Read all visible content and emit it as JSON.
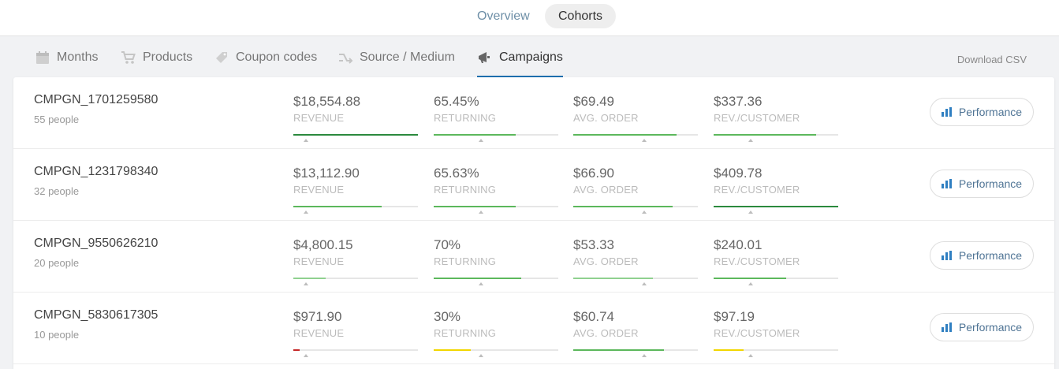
{
  "top_tabs": {
    "overview": "Overview",
    "cohorts": "Cohorts"
  },
  "subnav": {
    "tabs": [
      {
        "label": "Months",
        "icon": "calendar-icon"
      },
      {
        "label": "Products",
        "icon": "cart-icon"
      },
      {
        "label": "Coupon codes",
        "icon": "tag-icon"
      },
      {
        "label": "Source / Medium",
        "icon": "shuffle-icon"
      },
      {
        "label": "Campaigns",
        "icon": "megaphone-icon",
        "active": true
      }
    ],
    "download": "Download CSV"
  },
  "labels": {
    "revenue": "REVENUE",
    "returning": "RETURNING",
    "avg_order": "AVG. ORDER",
    "rev_customer": "REV./CUSTOMER",
    "performance": "Performance"
  },
  "colors": {
    "dark_green": "#2b8a3e",
    "green": "#5cb85c",
    "light_green": "#8fd18f",
    "yellow": "#f2d600",
    "red": "#c62828",
    "accent_blue": "#1e6fae"
  },
  "rows": [
    {
      "name": "CMPGN_1701259580",
      "people": "55 people",
      "revenue": "$18,554.88",
      "returning": "65.45%",
      "avg_order": "$69.49",
      "rev_customer": "$337.36",
      "levels": {
        "revenue": 1.0,
        "returning": 0.66,
        "avg_order": 0.83,
        "rev_customer": 0.82
      },
      "bar_colors": {
        "revenue": "dark_green",
        "returning": "green",
        "avg_order": "green",
        "rev_customer": "green"
      },
      "avg_marker": {
        "revenue": 0.1,
        "returning": 0.38,
        "avg_order": 0.57,
        "rev_customer": 0.3
      }
    },
    {
      "name": "CMPGN_1231798340",
      "people": "32 people",
      "revenue": "$13,112.90",
      "returning": "65.63%",
      "avg_order": "$66.90",
      "rev_customer": "$409.78",
      "levels": {
        "revenue": 0.71,
        "returning": 0.66,
        "avg_order": 0.8,
        "rev_customer": 1.0
      },
      "bar_colors": {
        "revenue": "green",
        "returning": "green",
        "avg_order": "green",
        "rev_customer": "dark_green"
      },
      "avg_marker": {
        "revenue": 0.1,
        "returning": 0.38,
        "avg_order": 0.57,
        "rev_customer": 0.3
      }
    },
    {
      "name": "CMPGN_9550626210",
      "people": "20 people",
      "revenue": "$4,800.15",
      "returning": "70%",
      "avg_order": "$53.33",
      "rev_customer": "$240.01",
      "levels": {
        "revenue": 0.26,
        "returning": 0.7,
        "avg_order": 0.64,
        "rev_customer": 0.58
      },
      "bar_colors": {
        "revenue": "light_green",
        "returning": "green",
        "avg_order": "light_green",
        "rev_customer": "green"
      },
      "avg_marker": {
        "revenue": 0.1,
        "returning": 0.38,
        "avg_order": 0.57,
        "rev_customer": 0.3
      }
    },
    {
      "name": "CMPGN_5830617305",
      "people": "10 people",
      "revenue": "$971.90",
      "returning": "30%",
      "avg_order": "$60.74",
      "rev_customer": "$97.19",
      "levels": {
        "revenue": 0.05,
        "returning": 0.3,
        "avg_order": 0.73,
        "rev_customer": 0.24
      },
      "bar_colors": {
        "revenue": "red",
        "returning": "yellow",
        "avg_order": "green",
        "rev_customer": "yellow"
      },
      "avg_marker": {
        "revenue": 0.1,
        "returning": 0.38,
        "avg_order": 0.57,
        "rev_customer": 0.3
      }
    }
  ]
}
